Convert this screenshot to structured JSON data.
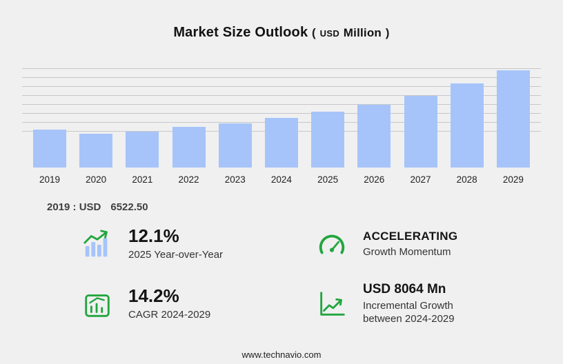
{
  "title": {
    "main": "Market Size Outlook",
    "paren_open": "(",
    "unit_small": "USD",
    "unit": "Million",
    "paren_close": ")"
  },
  "chart_data": {
    "type": "bar",
    "title": "Market Size Outlook (USD Million)",
    "categories": [
      "2019",
      "2020",
      "2021",
      "2022",
      "2023",
      "2024",
      "2025",
      "2026",
      "2027",
      "2028",
      "2029"
    ],
    "values": [
      6522.5,
      5810,
      6170,
      7000,
      7590,
      8556,
      9591,
      10790,
      12330,
      14350,
      16620
    ],
    "xlabel": "",
    "ylabel": "",
    "ylim": [
      0,
      17000
    ],
    "grid": "horizontal",
    "legend": "none",
    "bar_color": "#a6c4f9",
    "annotations": [
      "2019 : USD 6522.50"
    ]
  },
  "annotation": {
    "label": "2019 : USD",
    "value": "6522.50"
  },
  "stats": [
    {
      "value": "12.1%",
      "label": "2025 Year-over-Year",
      "icon": "yoy-bars-arrow-icon"
    },
    {
      "value": "ACCELERATING",
      "label": "Growth Momentum",
      "icon": "gauge-icon"
    },
    {
      "value": "14.2%",
      "label": "CAGR 2024-2029",
      "icon": "cagr-chart-icon"
    },
    {
      "value": "USD 8064 Mn",
      "label": "Incremental Growth",
      "label2": "between 2024-2029",
      "icon": "growth-arrow-icon"
    }
  ],
  "footer": {
    "url": "www.technavio.com"
  },
  "colors": {
    "accent_green": "#22a63e",
    "bar_blue": "#a6c4f9",
    "background": "#f0f0f1",
    "gridline": "#c7c7c9"
  }
}
